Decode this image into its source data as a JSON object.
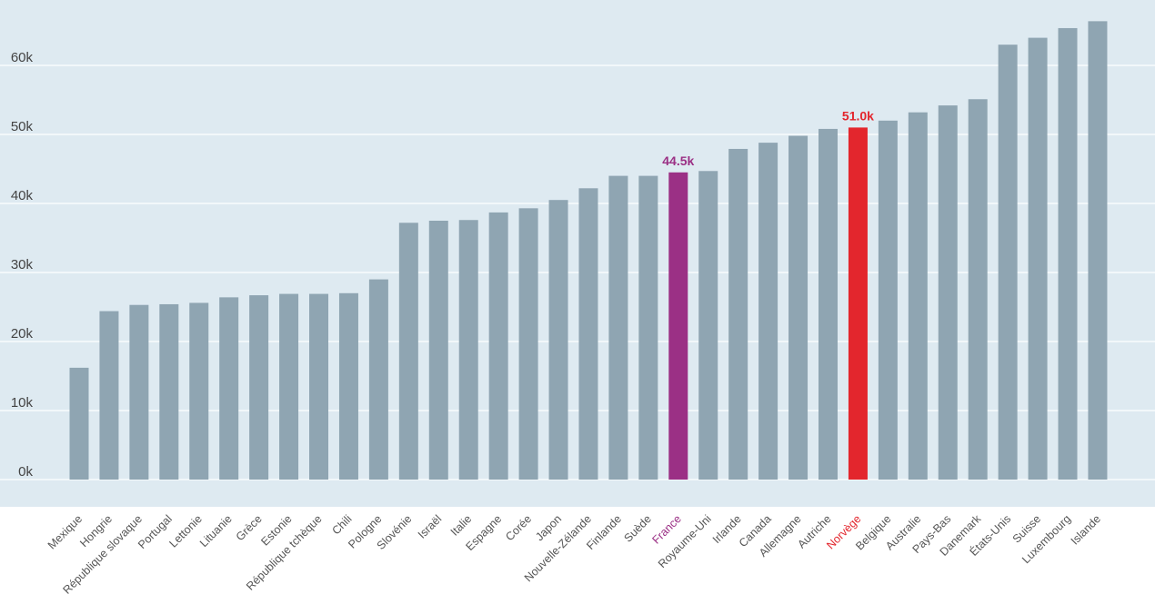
{
  "chart_data": {
    "type": "bar",
    "title": "",
    "xlabel": "",
    "ylabel": "",
    "ylim": [
      0,
      70000
    ],
    "yticks": [
      0,
      10000,
      20000,
      30000,
      40000,
      50000,
      60000
    ],
    "ytick_labels": [
      "0k",
      "10k",
      "20k",
      "30k",
      "40k",
      "50k",
      "60k"
    ],
    "grid": true,
    "colors": {
      "plot_background": "#deeaf1",
      "bar": "#8fa5b2",
      "gridline": "#ffffff",
      "tick_text": "#444444",
      "category_text": "#555555"
    },
    "categories": [
      "Mexique",
      "Hongrie",
      "République slovaque",
      "Portugal",
      "Lettonie",
      "Lituanie",
      "Grèce",
      "Estonie",
      "République tchèque",
      "Chili",
      "Pologne",
      "Slovénie",
      "Israël",
      "Italie",
      "Espagne",
      "Corée",
      "Japon",
      "Nouvelle-Zélande",
      "Finlande",
      "Suède",
      "France",
      "Royaume-Uni",
      "Irlande",
      "Canada",
      "Allemagne",
      "Autriche",
      "Norvège",
      "Belgique",
      "Australie",
      "Pays-Bas",
      "Danemark",
      "États-Unis",
      "Suisse",
      "Luxembourg",
      "Islande"
    ],
    "values": [
      16200,
      24400,
      25300,
      25400,
      25600,
      26400,
      26700,
      26900,
      26900,
      27000,
      29000,
      37200,
      37500,
      37600,
      38700,
      39300,
      40500,
      42200,
      44000,
      44000,
      44500,
      44700,
      47900,
      48800,
      49800,
      50800,
      51000,
      52000,
      53200,
      54200,
      55100,
      63000,
      64000,
      65400,
      66400
    ],
    "highlights": [
      {
        "category": "France",
        "color": "#9b3085",
        "label": "44.5k"
      },
      {
        "category": "Norvège",
        "color": "#e3262d",
        "label": "51.0k"
      }
    ]
  }
}
